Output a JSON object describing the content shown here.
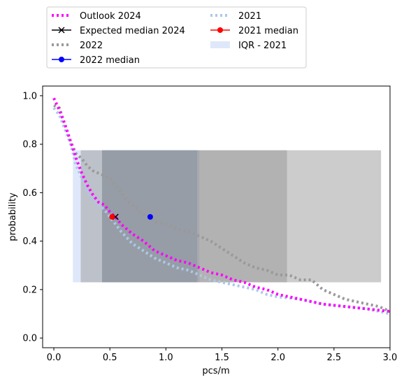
{
  "chart_data": {
    "type": "line",
    "title": "",
    "xlabel": "pcs/m",
    "ylabel": "probability",
    "xlim": [
      -0.1,
      3.0
    ],
    "ylim": [
      -0.04,
      1.04
    ],
    "x_ticks": [
      "0.0",
      "0.5",
      "1.0",
      "1.5",
      "2.0",
      "2.5",
      "3.0"
    ],
    "y_ticks": [
      "0.0",
      "0.2",
      "0.4",
      "0.6",
      "0.8",
      "1.0"
    ],
    "grid": false,
    "legend_position": "above plot, two columns",
    "legend": [
      {
        "label": "Outlook 2024",
        "kind": "dotted-line",
        "color": "#ff00ff"
      },
      {
        "label": "2021",
        "kind": "dotted-line",
        "color": "#aec7e8"
      },
      {
        "label": "Expected median 2024",
        "kind": "line-x",
        "color": "#000000"
      },
      {
        "label": "2021 median",
        "kind": "line-dot",
        "color": "#ff0000"
      },
      {
        "label": "2022",
        "kind": "dotted-line",
        "color": "#999999"
      },
      {
        "label": "IQR - 2021",
        "kind": "patch",
        "color": "#dfe8fa"
      },
      {
        "label": "2022 median",
        "kind": "line-dot",
        "color": "#0000ff"
      }
    ],
    "bands": [
      {
        "name": "IQR - 2021",
        "x": [
          0.17,
          1.3
        ],
        "y": [
          0.23,
          0.775
        ],
        "color": "#dfe8fa",
        "opacity": 1.0
      },
      {
        "name": "band-2",
        "x": [
          0.24,
          2.92
        ],
        "y": [
          0.23,
          0.775
        ],
        "color": "#999999",
        "opacity": 0.5
      },
      {
        "name": "band-3",
        "x": [
          0.43,
          2.08
        ],
        "y": [
          0.23,
          0.775
        ],
        "color": "#808080",
        "opacity": 0.35
      },
      {
        "name": "band-4",
        "x": [
          0.43,
          1.28
        ],
        "y": [
          0.23,
          0.775
        ],
        "color": "#708090",
        "opacity": 0.3
      }
    ],
    "series": [
      {
        "name": "2022",
        "color": "#999999",
        "style": "dotted",
        "x": [
          0.0,
          0.05,
          0.1,
          0.15,
          0.2,
          0.25,
          0.3,
          0.35,
          0.4,
          0.45,
          0.5,
          0.55,
          0.6,
          0.65,
          0.7,
          0.75,
          0.8,
          0.85,
          0.9,
          1.0,
          1.1,
          1.2,
          1.3,
          1.4,
          1.5,
          1.6,
          1.7,
          1.8,
          1.9,
          2.0,
          2.1,
          2.2,
          2.3,
          2.4,
          2.5,
          2.6,
          2.7,
          2.8,
          2.9,
          3.0
        ],
        "y": [
          0.96,
          0.95,
          0.88,
          0.81,
          0.76,
          0.74,
          0.71,
          0.69,
          0.68,
          0.67,
          0.66,
          0.63,
          0.6,
          0.57,
          0.55,
          0.53,
          0.51,
          0.5,
          0.48,
          0.47,
          0.45,
          0.44,
          0.42,
          0.4,
          0.37,
          0.34,
          0.31,
          0.29,
          0.28,
          0.26,
          0.26,
          0.24,
          0.24,
          0.2,
          0.18,
          0.16,
          0.15,
          0.14,
          0.13,
          0.11
        ]
      },
      {
        "name": "2021",
        "color": "#aec7e8",
        "style": "dotted",
        "x": [
          0.0,
          0.05,
          0.1,
          0.15,
          0.2,
          0.25,
          0.3,
          0.35,
          0.4,
          0.45,
          0.5,
          0.6,
          0.7,
          0.8,
          0.9,
          1.0,
          1.1,
          1.2,
          1.3,
          1.4,
          1.5,
          1.6,
          1.7,
          1.8,
          1.9,
          2.0,
          2.2,
          2.4,
          2.6,
          2.8,
          3.0
        ],
        "y": [
          0.95,
          0.92,
          0.86,
          0.8,
          0.71,
          0.66,
          0.6,
          0.57,
          0.55,
          0.53,
          0.5,
          0.44,
          0.39,
          0.36,
          0.33,
          0.31,
          0.29,
          0.28,
          0.26,
          0.24,
          0.23,
          0.22,
          0.21,
          0.2,
          0.18,
          0.17,
          0.16,
          0.14,
          0.13,
          0.12,
          0.1
        ]
      },
      {
        "name": "Outlook 2024",
        "color": "#ff00ff",
        "style": "dotted",
        "x": [
          0.0,
          0.05,
          0.1,
          0.15,
          0.2,
          0.25,
          0.3,
          0.35,
          0.4,
          0.45,
          0.5,
          0.55,
          0.6,
          0.7,
          0.8,
          0.9,
          1.0,
          1.1,
          1.2,
          1.3,
          1.4,
          1.5,
          1.6,
          1.7,
          1.8,
          1.9,
          2.0,
          2.2,
          2.4,
          2.6,
          2.8,
          3.0
        ],
        "y": [
          0.99,
          0.94,
          0.88,
          0.81,
          0.74,
          0.68,
          0.63,
          0.59,
          0.56,
          0.55,
          0.52,
          0.5,
          0.47,
          0.43,
          0.4,
          0.36,
          0.34,
          0.32,
          0.31,
          0.29,
          0.27,
          0.26,
          0.24,
          0.23,
          0.21,
          0.2,
          0.18,
          0.16,
          0.14,
          0.13,
          0.12,
          0.11
        ]
      }
    ],
    "medians": [
      {
        "name": "Expected median 2024",
        "x": 0.55,
        "y": 0.5,
        "marker": "x",
        "color": "#000000"
      },
      {
        "name": "2021 median",
        "x": 0.52,
        "y": 0.5,
        "marker": "o",
        "color": "#ff0000"
      },
      {
        "name": "2022 median",
        "x": 0.86,
        "y": 0.5,
        "marker": "o",
        "color": "#0000ff"
      }
    ]
  }
}
